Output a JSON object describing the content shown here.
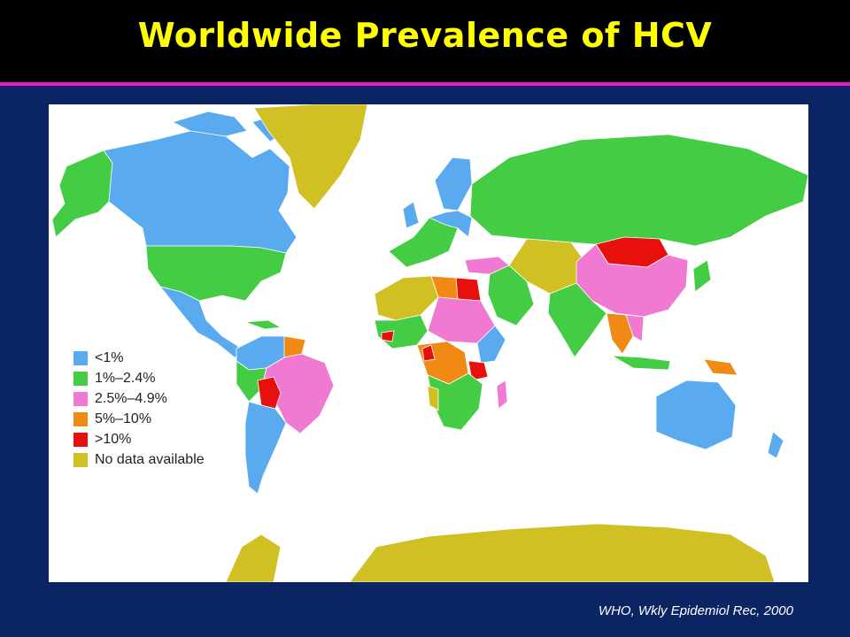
{
  "title": "Worldwide Prevalence of HCV",
  "citation": "WHO, Wkly Epidemiol Rec, 2000",
  "colors": {
    "background": "#0b2464",
    "title": "#ffff00",
    "rule": "#e51ec8",
    "lt1": "#5aaaf0",
    "p1_2_4": "#44cc44",
    "p2_5_4_9": "#f07ad2",
    "p5_10": "#f08a14",
    "gt10": "#e8100c",
    "nodata": "#d0c024"
  },
  "legend": [
    {
      "label": "<1%",
      "color": "#5aaaf0"
    },
    {
      "label": "1%–2.4%",
      "color": "#44cc44"
    },
    {
      "label": "2.5%–4.9%",
      "color": "#f07ad2"
    },
    {
      "label": "5%–10%",
      "color": "#f08a14"
    },
    {
      "label": ">10%",
      "color": "#e8100c"
    },
    {
      "label": "No data available",
      "color": "#d0c024"
    }
  ]
}
